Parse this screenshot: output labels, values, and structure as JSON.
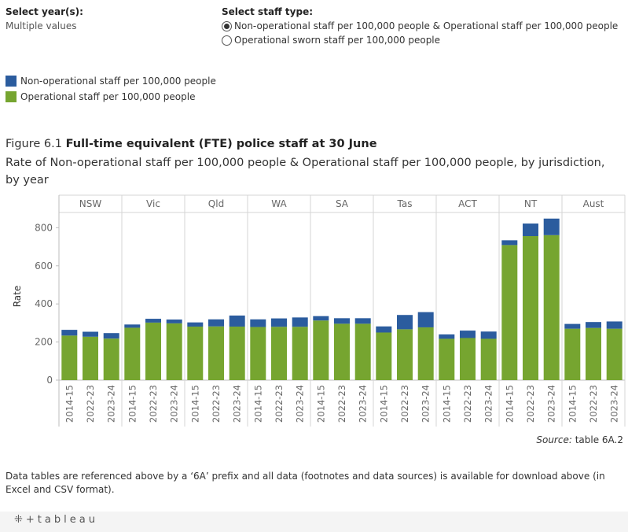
{
  "controls": {
    "year": {
      "label": "Select year(s):",
      "value": "Multiple values"
    },
    "staff": {
      "label": "Select staff type:",
      "options": [
        {
          "label": "Non-operational staff per 100,000 people & Operational staff per 100,000 people",
          "selected": true
        },
        {
          "label": "Operational sworn staff per 100,000 people",
          "selected": false
        }
      ]
    }
  },
  "legend": [
    {
      "label": "Non-operational staff per 100,000 people",
      "color": "#2b5c9e"
    },
    {
      "label": "Operational staff per 100,000 people",
      "color": "#76a530"
    }
  ],
  "figure": {
    "number": "Figure 6.1",
    "title": "Full-time equivalent (FTE) police staff at 30 June",
    "subtitle": "Rate of Non-operational staff per 100,000 people & Operational staff per 100,000 people, by jurisdiction, by year"
  },
  "chart_data": {
    "type": "bar",
    "stacked": true,
    "ylabel": "Rate",
    "ylim": [
      0,
      880
    ],
    "yticks": [
      0,
      200,
      400,
      600,
      800
    ],
    "grid": false,
    "groups": [
      "NSW",
      "Vic",
      "Qld",
      "WA",
      "SA",
      "Tas",
      "ACT",
      "NT",
      "Aust"
    ],
    "categories": [
      "2014-15",
      "2022-23",
      "2023-24"
    ],
    "series": [
      {
        "name": "Operational staff per 100,000 people",
        "color": "#76a530",
        "values": [
          [
            234,
            228,
            218
          ],
          [
            275,
            302,
            298
          ],
          [
            281,
            282,
            281
          ],
          [
            279,
            280,
            280
          ],
          [
            313,
            296,
            296
          ],
          [
            250,
            267,
            277
          ],
          [
            217,
            221,
            217
          ],
          [
            709,
            756,
            761
          ],
          [
            270,
            274,
            270
          ]
        ]
      },
      {
        "name": "Non-operational staff per 100,000 people",
        "color": "#2b5c9e",
        "values": [
          [
            30,
            26,
            29
          ],
          [
            17,
            20,
            20
          ],
          [
            22,
            37,
            58
          ],
          [
            40,
            44,
            49
          ],
          [
            23,
            29,
            29
          ],
          [
            32,
            75,
            80
          ],
          [
            23,
            39,
            38
          ],
          [
            25,
            66,
            87
          ],
          [
            25,
            31,
            38
          ]
        ]
      }
    ]
  },
  "source": {
    "label": "Source:",
    "text": " table 6A.2"
  },
  "footnote": "Data tables are referenced above by a ‘6A’ prefix and all data (footnotes and data sources) is available for download above (in Excel and CSV format).",
  "footer": {
    "logo_text": "tableau"
  }
}
